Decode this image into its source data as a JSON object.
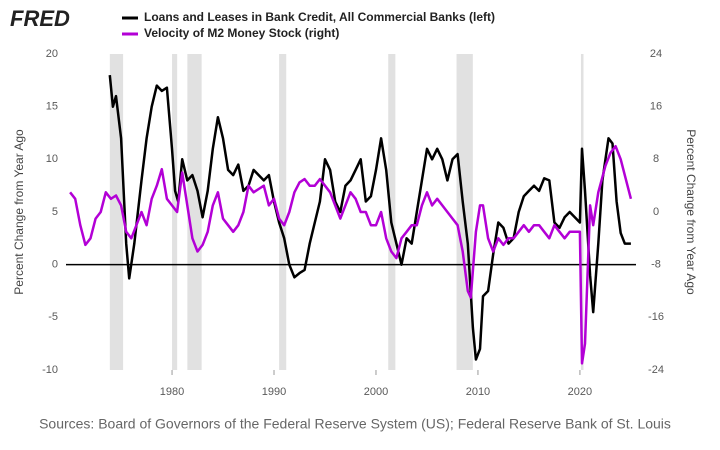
{
  "chart_data": {
    "type": "line",
    "logo": "FRED",
    "source": "Sources: Board of Governors of the Federal Reserve System (US); Federal Reserve Bank of St. Louis",
    "ylabel": "Percent Change from Year Ago",
    "y2label": "Percent Change from Year Ago",
    "xlim": [
      1969.6,
      2025.5
    ],
    "xticks": [
      1980,
      1990,
      2000,
      2010,
      2020
    ],
    "ylim": [
      -10,
      20
    ],
    "yticks": [
      -10,
      -5,
      0,
      5,
      10,
      15,
      20
    ],
    "y2lim": [
      -24,
      24
    ],
    "y2ticks": [
      -24,
      -16,
      -8,
      0,
      8,
      16,
      24
    ],
    "recessions": [
      [
        1973.9,
        1975.2
      ],
      [
        1980.0,
        1980.5
      ],
      [
        1981.5,
        1982.9
      ],
      [
        1990.5,
        1991.2
      ],
      [
        2001.2,
        2001.9
      ],
      [
        2007.9,
        2009.5
      ],
      [
        2020.1,
        2020.35
      ]
    ],
    "recession_color": "#e1e1e1",
    "series": [
      {
        "name": "Loans and Leases in Bank Credit, All Commercial Banks (left)",
        "color": "#000000",
        "axis": "y",
        "x": [
          1973.9,
          1974.2,
          1974.5,
          1975,
          1975.5,
          1975.8,
          1976.3,
          1977,
          1977.5,
          1978,
          1978.5,
          1979,
          1979.5,
          1980,
          1980.3,
          1980.6,
          1981,
          1981.5,
          1982,
          1982.5,
          1983,
          1983.5,
          1984,
          1984.5,
          1985,
          1985.5,
          1986,
          1986.5,
          1987,
          1987.5,
          1988,
          1989,
          1989.5,
          1990,
          1990.5,
          1991,
          1991.5,
          1992,
          1992.5,
          1993,
          1993.5,
          1994,
          1994.5,
          1995,
          1995.5,
          1996,
          1996.5,
          1997,
          1997.5,
          1998,
          1998.5,
          1999,
          1999.5,
          2000,
          2000.5,
          2001,
          2001.5,
          2002,
          2002.5,
          2003,
          2003.5,
          2004,
          2004.5,
          2005,
          2005.5,
          2006,
          2006.5,
          2007,
          2007.5,
          2008,
          2008.5,
          2009,
          2009.5,
          2009.8,
          2010.2,
          2010.5,
          2011,
          2011.5,
          2012,
          2012.5,
          2013,
          2013.5,
          2014,
          2014.5,
          2015,
          2015.5,
          2016,
          2016.5,
          2017,
          2017.5,
          2018,
          2018.5,
          2019,
          2019.5,
          2020,
          2020.2,
          2020.5,
          2021,
          2021.3,
          2021.8,
          2022.2,
          2022.8,
          2023.2,
          2023.6,
          2024,
          2024.4,
          2025
        ],
        "values": [
          18,
          15,
          16,
          12,
          2,
          -1.3,
          2,
          8,
          12,
          15,
          17,
          16.5,
          16.8,
          11,
          7,
          6,
          10,
          8,
          8.5,
          7,
          4.5,
          7,
          11,
          14,
          12,
          9,
          8.5,
          9.5,
          7,
          7.5,
          9,
          8,
          8.5,
          6,
          4,
          2.5,
          0,
          -1.2,
          -0.8,
          -0.5,
          2,
          4,
          6,
          10,
          9,
          6,
          5,
          7.5,
          8,
          9,
          10,
          6,
          6.5,
          9,
          12,
          9,
          4,
          2,
          0,
          2.5,
          2,
          5,
          8,
          11,
          10,
          11,
          10,
          8,
          10,
          10.5,
          6,
          2,
          -6,
          -9,
          -8,
          -3,
          -2.5,
          1,
          4,
          3.5,
          2,
          2.5,
          5,
          6.5,
          7,
          7.5,
          7,
          8.2,
          8,
          4,
          3.5,
          4.5,
          5,
          4.5,
          4,
          11,
          7,
          -1,
          -4.5,
          2,
          8,
          12,
          11.5,
          6,
          3,
          2,
          2
        ]
      },
      {
        "name": "Velocity of M2 Money Stock (right)",
        "color": "#b300d6",
        "axis": "y2",
        "x": [
          1970,
          1970.5,
          1971,
          1971.5,
          1972,
          1972.5,
          1973,
          1973.5,
          1974,
          1974.5,
          1975,
          1975.5,
          1976,
          1976.5,
          1977,
          1977.5,
          1978,
          1978.5,
          1979,
          1979.5,
          1980,
          1980.5,
          1981,
          1981.5,
          1982,
          1982.5,
          1983,
          1983.5,
          1984,
          1984.5,
          1985,
          1985.5,
          1986,
          1986.5,
          1987,
          1987.5,
          1988,
          1988.5,
          1989,
          1989.5,
          1990,
          1990.5,
          1991,
          1991.5,
          1992,
          1992.5,
          1993,
          1993.5,
          1994,
          1994.5,
          1995,
          1995.5,
          1996,
          1996.5,
          1997,
          1997.5,
          1998,
          1998.5,
          1999,
          1999.5,
          2000,
          2000.5,
          2001,
          2001.5,
          2002,
          2002.5,
          2003,
          2003.5,
          2004,
          2004.5,
          2005,
          2005.5,
          2006,
          2006.5,
          2007,
          2007.5,
          2008,
          2008.5,
          2009,
          2009.3,
          2009.8,
          2010.2,
          2010.5,
          2011,
          2011.5,
          2012,
          2012.5,
          2013,
          2013.5,
          2014,
          2014.5,
          2015,
          2015.5,
          2016,
          2016.5,
          2017,
          2017.5,
          2018,
          2018.5,
          2019,
          2019.5,
          2020,
          2020.2,
          2020.5,
          2021,
          2021.3,
          2021.8,
          2022.5,
          2023,
          2023.5,
          2024,
          2024.5,
          2025
        ],
        "values": [
          3,
          2,
          -2,
          -5,
          -4,
          -1,
          0,
          3,
          2,
          2.5,
          1,
          -3,
          -4,
          -2,
          0,
          -2,
          2,
          4,
          6.5,
          2,
          1,
          0,
          6,
          1,
          -4,
          -6,
          -5,
          -3,
          1,
          3,
          -1,
          -2,
          -3,
          -2,
          0,
          4,
          3,
          3.5,
          4,
          1,
          2,
          -1,
          -2,
          0,
          3,
          4.5,
          5,
          4,
          4,
          5,
          4,
          3,
          1,
          -1,
          1,
          3,
          2,
          0,
          0,
          -2,
          -2,
          0,
          -4,
          -6,
          -7,
          -4,
          -3,
          -2,
          -2,
          1,
          3,
          1,
          2,
          1,
          0,
          -1,
          -2,
          -6,
          -12,
          -13,
          -3,
          1,
          1,
          -4,
          -6,
          -4,
          -5,
          -4,
          -4,
          -3,
          -2,
          -3,
          -2,
          -2,
          -3,
          -4,
          -2,
          -3,
          -4,
          -3,
          -3,
          -3,
          -23,
          -20,
          1,
          -2,
          3,
          7,
          9,
          10,
          8,
          5,
          2
        ]
      }
    ]
  }
}
